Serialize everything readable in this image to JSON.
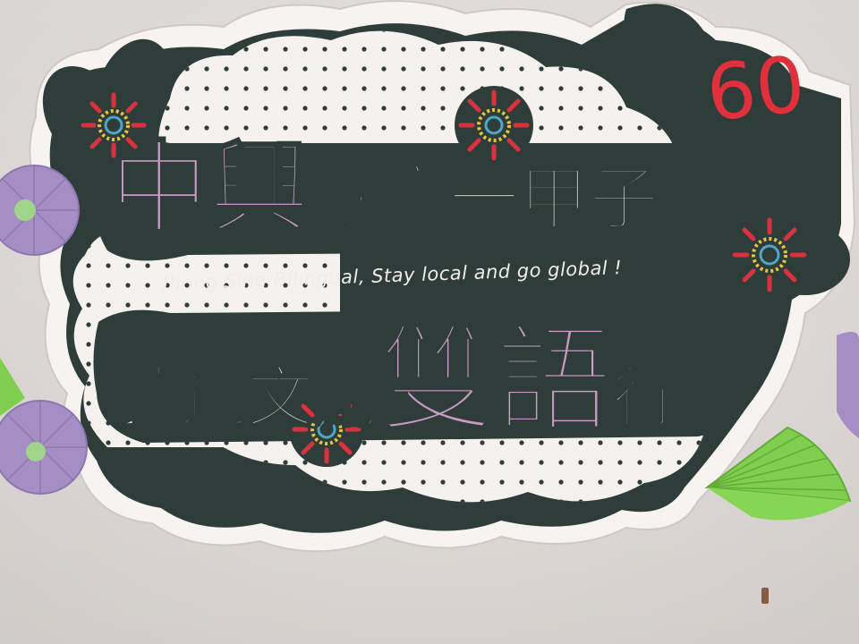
{
  "sign": {
    "title_emphasis_1": "中興",
    "title_rest": "歡慶一甲子",
    "tagline": "Jhong Sing Bilingual, Stay local and go global !",
    "subtitle_part_1": "藝遊文創",
    "subtitle_emphasis": "雙語",
    "subtitle_part_2": "行",
    "anniversary_number": "60"
  },
  "colors": {
    "wall": "#e8e3e0",
    "sign_dark": "#2f3d3a",
    "cloud_white": "#f4f1ef",
    "pink_text": "#c89ac4",
    "cream_text": "#ece3df",
    "number_red": "#e0303b",
    "fan_purple": "#a48ec4",
    "fan_green": "#7fce4f"
  },
  "decorations": [
    "firework-rosette",
    "paper-fan-purple",
    "paper-fan-green",
    "polka-dot-cloud"
  ]
}
